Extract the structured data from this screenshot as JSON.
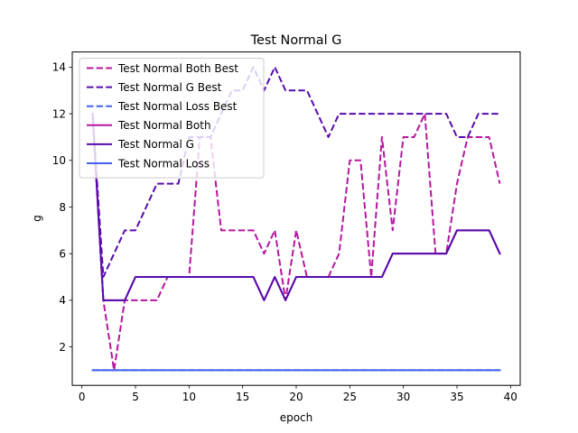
{
  "chart_data": {
    "type": "line",
    "title": "Test Normal G",
    "xlabel": "epoch",
    "ylabel": "g",
    "xlim": [
      -0.9,
      40.9
    ],
    "ylim": [
      0.35,
      14.65
    ],
    "xticks": [
      0,
      5,
      10,
      15,
      20,
      25,
      30,
      35,
      40
    ],
    "yticks": [
      2,
      4,
      6,
      8,
      10,
      12,
      14
    ],
    "grid": false,
    "legend_position": "top-left",
    "x": [
      1,
      2,
      3,
      4,
      5,
      6,
      7,
      8,
      9,
      10,
      11,
      12,
      13,
      14,
      15,
      16,
      17,
      18,
      19,
      20,
      21,
      22,
      23,
      24,
      25,
      26,
      27,
      28,
      29,
      30,
      31,
      32,
      33,
      34,
      35,
      36,
      37,
      38,
      39
    ],
    "series": [
      {
        "name": "Test Normal Both Best",
        "color": "#b5179e",
        "dash": true,
        "values": [
          12,
          4,
          1,
          4,
          4,
          4,
          4,
          5,
          5,
          5,
          11,
          11,
          7,
          7,
          7,
          7,
          6,
          7,
          4,
          7,
          5,
          5,
          5,
          6,
          10,
          10,
          5,
          11,
          7,
          11,
          11,
          12,
          6,
          6,
          9,
          11,
          11,
          11,
          9
        ]
      },
      {
        "name": "Test Normal G Best",
        "color": "#560bad",
        "dash": true,
        "values": [
          12,
          5,
          6,
          7,
          7,
          8,
          9,
          9,
          9,
          11,
          11,
          11,
          12,
          13,
          13,
          14,
          13,
          14,
          13,
          13,
          13,
          12,
          11,
          12,
          12,
          12,
          12,
          12,
          12,
          12,
          12,
          12,
          12,
          12,
          11,
          11,
          12,
          12,
          12
        ]
      },
      {
        "name": "Test Normal Loss Best",
        "color": "#4361ee",
        "dash": true,
        "values": [
          1,
          1,
          1,
          1,
          1,
          1,
          1,
          1,
          1,
          1,
          1,
          1,
          1,
          1,
          1,
          1,
          1,
          1,
          1,
          1,
          1,
          1,
          1,
          1,
          1,
          1,
          1,
          1,
          1,
          1,
          1,
          1,
          1,
          1,
          1,
          1,
          1,
          1,
          1
        ]
      },
      {
        "name": "Test Normal Both",
        "color": "#b5179e",
        "dash": false,
        "values": [
          12,
          4,
          4,
          4,
          5,
          5,
          5,
          5,
          5,
          5,
          5,
          5,
          5,
          5,
          5,
          5,
          4,
          5,
          4,
          5,
          5,
          5,
          5,
          5,
          5,
          5,
          5,
          5,
          6,
          6,
          6,
          6,
          6,
          6,
          7,
          7,
          7,
          7,
          6
        ]
      },
      {
        "name": "Test Normal G",
        "color": "#560bad",
        "dash": false,
        "values": [
          12,
          4,
          4,
          4,
          5,
          5,
          5,
          5,
          5,
          5,
          5,
          5,
          5,
          5,
          5,
          5,
          4,
          5,
          4,
          5,
          5,
          5,
          5,
          5,
          5,
          5,
          5,
          5,
          6,
          6,
          6,
          6,
          6,
          6,
          7,
          7,
          7,
          7,
          6
        ]
      },
      {
        "name": "Test Normal Loss",
        "color": "#4361ee",
        "dash": false,
        "values": [
          1,
          1,
          1,
          1,
          1,
          1,
          1,
          1,
          1,
          1,
          1,
          1,
          1,
          1,
          1,
          1,
          1,
          1,
          1,
          1,
          1,
          1,
          1,
          1,
          1,
          1,
          1,
          1,
          1,
          1,
          1,
          1,
          1,
          1,
          1,
          1,
          1,
          1,
          1
        ]
      }
    ]
  }
}
